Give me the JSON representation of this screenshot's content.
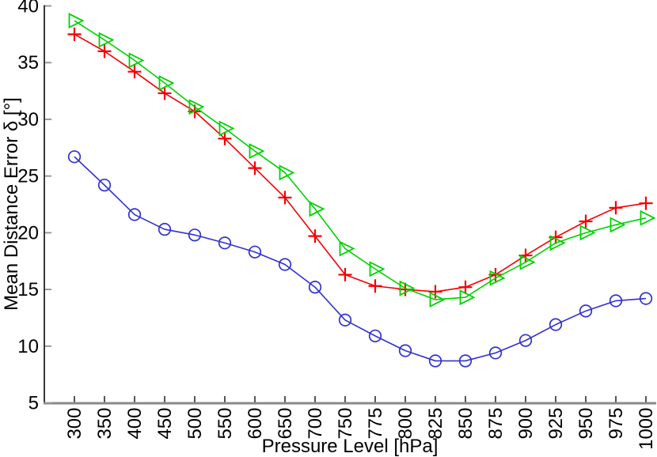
{
  "figure": {
    "background": "#ffffff"
  },
  "chart_data": {
    "type": "line",
    "title": "",
    "xlabel": "Pressure Level [hPa]",
    "ylabel": "Mean Distance Error δ [°]",
    "categories": [
      "300",
      "350",
      "400",
      "450",
      "500",
      "550",
      "600",
      "650",
      "700",
      "750",
      "775",
      "800",
      "825",
      "850",
      "875",
      "900",
      "925",
      "950",
      "975",
      "1000"
    ],
    "x_tick_rotation": -90,
    "yticks": [
      5,
      10,
      15,
      20,
      25,
      30,
      35,
      40
    ],
    "ylim": [
      5,
      40
    ],
    "grid": false,
    "legend": "none",
    "colors": {
      "left_spine": "#383838",
      "bottom_spine": "#8a8a8a",
      "x_tick": "#555555",
      "y_tick": "#999999",
      "text": "#000000"
    },
    "series": [
      {
        "name": "red-plus-series",
        "marker": "plus",
        "color": "#f40000",
        "values": [
          37.5,
          36.0,
          34.2,
          32.3,
          30.7,
          28.3,
          25.7,
          23.1,
          19.7,
          16.3,
          15.3,
          15.0,
          14.8,
          15.2,
          16.3,
          18.0,
          19.6,
          21.0,
          22.2,
          22.6
        ]
      },
      {
        "name": "green-triangle-series",
        "marker": "triangle-right",
        "color": "#00d200",
        "values": [
          38.7,
          37.0,
          35.2,
          33.2,
          31.1,
          29.2,
          27.2,
          25.3,
          22.1,
          18.6,
          16.8,
          15.1,
          14.1,
          14.3,
          16.0,
          17.4,
          19.1,
          20.0,
          20.7,
          21.3
        ]
      },
      {
        "name": "blue-circle-series",
        "marker": "circle",
        "color": "#3232cd",
        "values": [
          26.7,
          24.2,
          21.6,
          20.3,
          19.8,
          19.1,
          18.3,
          17.2,
          15.2,
          12.3,
          10.9,
          9.6,
          8.7,
          8.7,
          9.4,
          10.5,
          11.9,
          13.1,
          14.0,
          14.2
        ]
      }
    ]
  }
}
